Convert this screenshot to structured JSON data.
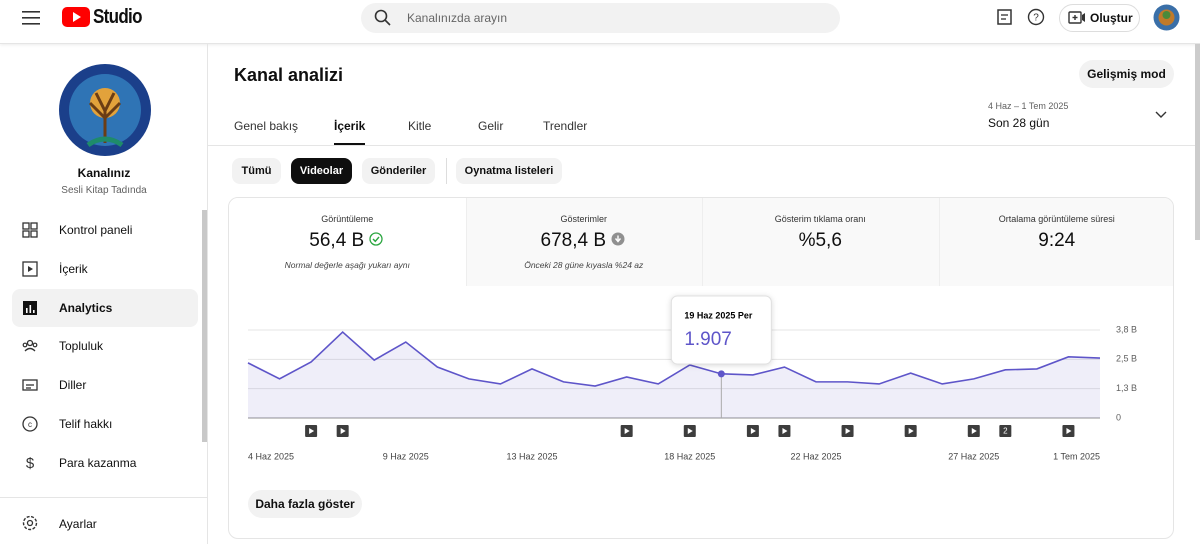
{
  "topbar": {
    "logo": "Studio",
    "search_placeholder": "Kanalınızda arayın",
    "create": "Oluştur"
  },
  "sidebar": {
    "channel_name": "Kanalınız",
    "channel_handle": "Sesli Kitap Tadında",
    "items": [
      "Kontrol paneli",
      "İçerik",
      "Analytics",
      "Topluluk",
      "Diller",
      "Telif hakkı",
      "Para kazanma"
    ],
    "active_item": 2,
    "settings": "Ayarlar"
  },
  "header": {
    "title": "Kanal analizi",
    "advanced": "Gelişmiş mod",
    "tabs": [
      "Genel bakış",
      "İçerik",
      "Kitle",
      "Gelir",
      "Trendler"
    ],
    "active_tab": 1,
    "date_range": "4 Haz – 1 Tem 2025",
    "period": "Son 28 gün"
  },
  "filters": {
    "items": [
      "Tümü",
      "Videolar",
      "Gönderiler",
      "Oynatma listeleri"
    ],
    "active": 1
  },
  "metrics": [
    {
      "title": "Görüntüleme",
      "value": "56,4 B",
      "note": "Normal değerle aşağı yukarı aynı",
      "status": "ok"
    },
    {
      "title": "Gösterimler",
      "value": "678,4 B",
      "note": "Önceki 28 güne kıyasla %24 az",
      "status": "down"
    },
    {
      "title": "Gösterim tıklama oranı",
      "value": "%5,6"
    },
    {
      "title": "Ortalama görüntüleme süresi",
      "value": "9:24"
    }
  ],
  "selected_metric": 0,
  "more_button": "Daha fazla göster",
  "chart_data": {
    "type": "line",
    "categories": [
      "4 Haz 2025",
      null,
      null,
      null,
      null,
      "9 Haz 2025",
      null,
      null,
      null,
      "13 Haz 2025",
      null,
      null,
      null,
      null,
      "18 Haz 2025",
      null,
      null,
      null,
      "22 Haz 2025",
      null,
      null,
      null,
      null,
      "27 Haz 2025",
      null,
      null,
      null,
      "1 Tem 2025"
    ],
    "series": [
      {
        "name": "Görüntüleme",
        "color": "#5e55c9",
        "values": [
          2380,
          1690,
          2420,
          3710,
          2500,
          3280,
          2200,
          1690,
          1470,
          2120,
          1560,
          1380,
          1770,
          1470,
          2290,
          1907,
          1860,
          2200,
          1560,
          1560,
          1470,
          1940,
          1470,
          1690,
          2080,
          2120,
          2640,
          2590
        ],
        "value_labels": [
          null,
          null,
          null,
          null,
          null,
          null,
          null,
          null,
          null,
          null,
          null,
          null,
          null,
          null,
          null,
          "1.907",
          null,
          null,
          null,
          null,
          null,
          null,
          null,
          null,
          null,
          null,
          null,
          null
        ]
      }
    ],
    "tooltip": "19 Haz 2025 Per",
    "ylim": [
      0,
      3800
    ],
    "yticks": [
      0,
      {
        "value": 1267,
        "label": "1,3 B"
      },
      {
        "value": 2533,
        "label": "2,5 B"
      },
      {
        "value": 3800,
        "label": "3,8 B"
      }
    ],
    "grid": true,
    "publications": [
      null,
      null,
      1,
      1,
      null,
      null,
      null,
      null,
      null,
      null,
      null,
      null,
      1,
      null,
      1,
      null,
      1,
      1,
      null,
      1,
      null,
      1,
      null,
      1,
      2,
      null,
      1,
      null
    ]
  }
}
